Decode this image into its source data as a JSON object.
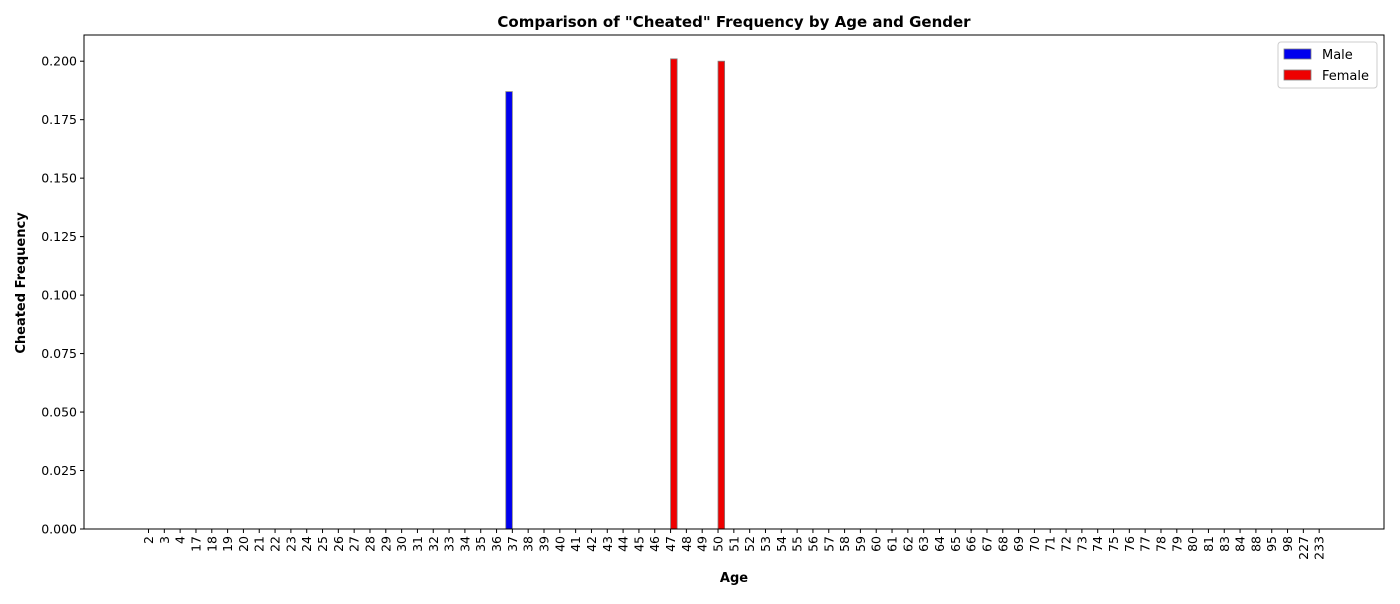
{
  "chart_data": {
    "type": "bar",
    "title": "Comparison of \"Cheated\" Frequency by Age and Gender",
    "xlabel": "Age",
    "ylabel": "Cheated Frequency",
    "categories": [
      "2",
      "3",
      "4",
      "17",
      "18",
      "19",
      "20",
      "21",
      "22",
      "23",
      "24",
      "25",
      "26",
      "27",
      "28",
      "29",
      "30",
      "31",
      "32",
      "33",
      "34",
      "35",
      "36",
      "37",
      "38",
      "39",
      "40",
      "41",
      "42",
      "43",
      "44",
      "45",
      "46",
      "47",
      "48",
      "49",
      "50",
      "51",
      "52",
      "53",
      "54",
      "55",
      "56",
      "57",
      "58",
      "59",
      "60",
      "61",
      "62",
      "63",
      "64",
      "65",
      "66",
      "67",
      "68",
      "69",
      "70",
      "71",
      "72",
      "73",
      "74",
      "75",
      "76",
      "77",
      "78",
      "79",
      "80",
      "81",
      "83",
      "84",
      "88",
      "95",
      "98",
      "227",
      "233"
    ],
    "series": [
      {
        "name": "Male",
        "color": "#0000ee",
        "values": [
          0,
          0,
          0,
          0,
          0,
          0,
          0,
          0,
          0,
          0,
          0,
          0,
          0,
          0,
          0,
          0,
          0,
          0,
          0,
          0,
          0,
          0,
          0,
          0.187,
          0,
          0,
          0,
          0,
          0,
          0,
          0,
          0,
          0,
          0,
          0,
          0,
          0,
          0,
          0,
          0,
          0,
          0,
          0,
          0,
          0,
          0,
          0,
          0,
          0,
          0,
          0,
          0,
          0,
          0,
          0,
          0,
          0,
          0,
          0,
          0,
          0,
          0,
          0,
          0,
          0,
          0,
          0,
          0,
          0,
          0,
          0,
          0,
          0,
          0,
          0
        ]
      },
      {
        "name": "Female",
        "color": "#ee0000",
        "values": [
          0,
          0,
          0,
          0,
          0,
          0,
          0,
          0,
          0,
          0,
          0,
          0,
          0,
          0,
          0,
          0,
          0,
          0,
          0,
          0,
          0,
          0,
          0,
          0,
          0,
          0,
          0,
          0,
          0,
          0,
          0,
          0,
          0,
          0.201,
          0,
          0,
          0.2,
          0,
          0,
          0,
          0,
          0,
          0,
          0,
          0,
          0,
          0,
          0,
          0,
          0,
          0,
          0,
          0,
          0,
          0,
          0,
          0,
          0,
          0,
          0,
          0,
          0,
          0,
          0,
          0,
          0,
          0,
          0,
          0,
          0,
          0,
          0,
          0,
          0,
          0
        ]
      }
    ],
    "yticks": [
      "0.000",
      "0.025",
      "0.050",
      "0.075",
      "0.100",
      "0.125",
      "0.150",
      "0.175",
      "0.200"
    ],
    "ylim": [
      0,
      0.2112
    ],
    "legend_position": "top-right",
    "grid": false
  }
}
